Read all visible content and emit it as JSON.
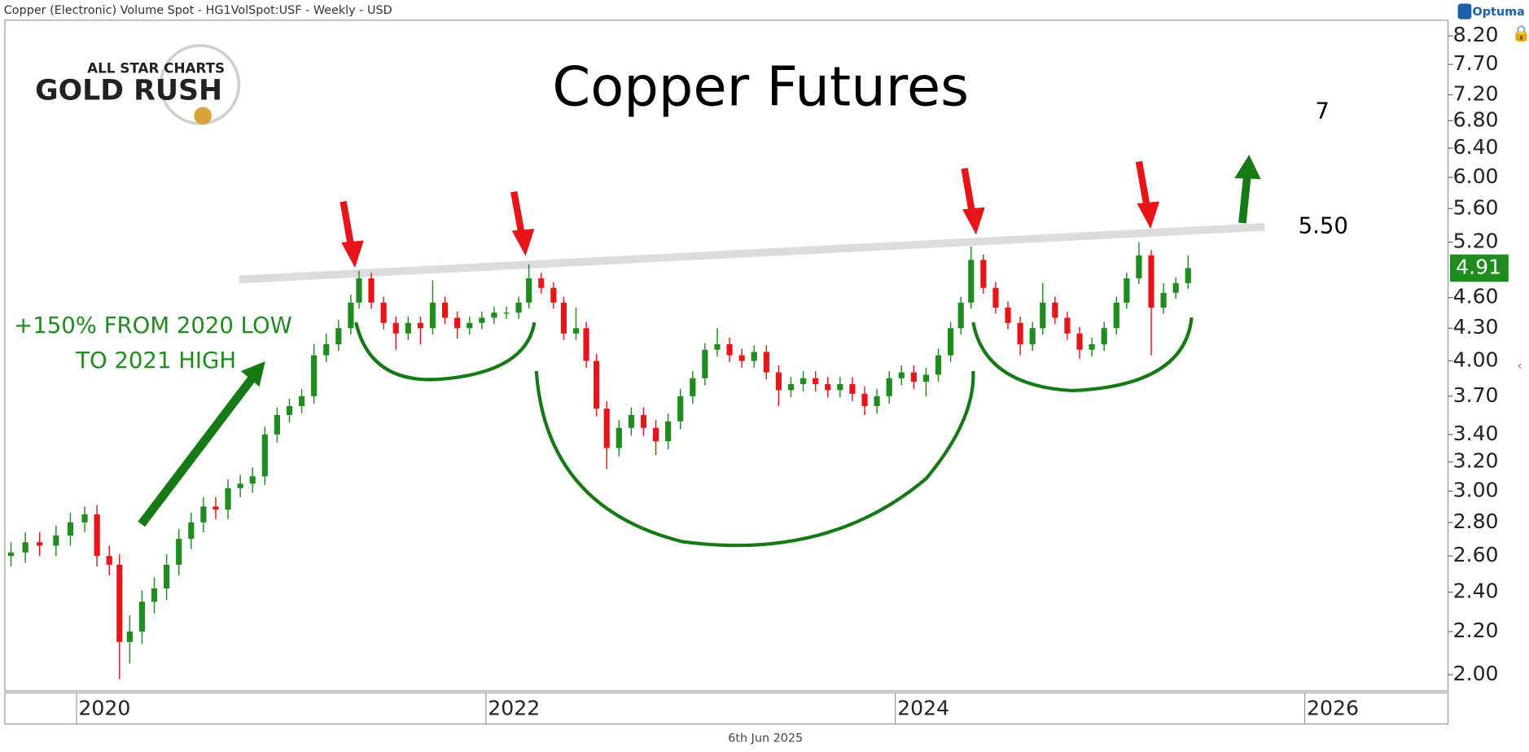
{
  "header": "Copper (Electronic) Volume Spot - HG1VolSpot:USF - Weekly - USD",
  "brand": "Optuma",
  "logo": {
    "line1": "ALL STAR CHARTS",
    "line2": "GOLD RUSH"
  },
  "footer": "6th Jun 2025",
  "chart_data": {
    "type": "candlestick",
    "title": "Copper Futures",
    "annotations": [
      "+150% FROM 2020 LOW",
      "TO 2021 HIGH",
      "7",
      "5.50"
    ],
    "up_color": "#1e8c1e",
    "down_color": "#e8141a",
    "log_scale": true,
    "x": [
      2019.68,
      2019.75,
      2019.82,
      2019.9,
      2019.97,
      2020.04,
      2020.1,
      2020.16,
      2020.21,
      2020.26,
      2020.32,
      2020.38,
      2020.44,
      2020.5,
      2020.56,
      2020.62,
      2020.68,
      2020.74,
      2020.8,
      2020.86,
      2020.92,
      2020.98,
      2021.04,
      2021.1,
      2021.16,
      2021.22,
      2021.28,
      2021.34,
      2021.38,
      2021.44,
      2021.5,
      2021.56,
      2021.62,
      2021.68,
      2021.74,
      2021.8,
      2021.86,
      2021.92,
      2021.98,
      2022.04,
      2022.1,
      2022.16,
      2022.21,
      2022.27,
      2022.33,
      2022.38,
      2022.44,
      2022.49,
      2022.54,
      2022.59,
      2022.65,
      2022.71,
      2022.77,
      2022.83,
      2022.89,
      2022.95,
      2023.01,
      2023.07,
      2023.13,
      2023.19,
      2023.25,
      2023.31,
      2023.37,
      2023.43,
      2023.49,
      2023.55,
      2023.61,
      2023.67,
      2023.73,
      2023.79,
      2023.85,
      2023.91,
      2023.97,
      2024.03,
      2024.09,
      2024.15,
      2024.21,
      2024.27,
      2024.32,
      2024.37,
      2024.43,
      2024.49,
      2024.55,
      2024.61,
      2024.67,
      2024.72,
      2024.78,
      2024.84,
      2024.9,
      2024.96,
      2025.02,
      2025.08,
      2025.13,
      2025.19,
      2025.25,
      2025.31,
      2025.37,
      2025.43
    ],
    "open": [
      2.6,
      2.62,
      2.68,
      2.66,
      2.72,
      2.8,
      2.85,
      2.6,
      2.55,
      2.15,
      2.2,
      2.35,
      2.42,
      2.55,
      2.7,
      2.8,
      2.9,
      2.88,
      3.02,
      3.05,
      3.1,
      3.4,
      3.55,
      3.62,
      3.7,
      4.05,
      4.15,
      4.3,
      4.55,
      4.8,
      4.55,
      4.35,
      4.25,
      4.35,
      4.3,
      4.55,
      4.4,
      4.3,
      4.35,
      4.4,
      4.45,
      4.45,
      4.55,
      4.8,
      4.7,
      4.55,
      4.25,
      4.3,
      4.0,
      3.6,
      3.3,
      3.45,
      3.55,
      3.45,
      3.35,
      3.5,
      3.7,
      3.85,
      4.1,
      4.15,
      4.05,
      4.0,
      4.08,
      3.9,
      3.75,
      3.8,
      3.85,
      3.8,
      3.75,
      3.8,
      3.72,
      3.62,
      3.7,
      3.85,
      3.9,
      3.82,
      3.88,
      4.05,
      4.3,
      4.55,
      5.0,
      4.7,
      4.5,
      4.35,
      4.15,
      4.3,
      4.55,
      4.4,
      4.25,
      4.1,
      4.15,
      4.3,
      4.55,
      4.8,
      5.05,
      4.5,
      4.65,
      4.75
    ],
    "high": [
      2.68,
      2.74,
      2.74,
      2.78,
      2.86,
      2.9,
      2.91,
      2.66,
      2.61,
      2.28,
      2.41,
      2.48,
      2.61,
      2.76,
      2.86,
      2.96,
      2.96,
      3.08,
      3.11,
      3.16,
      3.46,
      3.61,
      3.68,
      3.76,
      4.15,
      4.25,
      4.38,
      4.63,
      4.88,
      4.86,
      4.61,
      4.41,
      4.41,
      4.41,
      4.78,
      4.61,
      4.46,
      4.41,
      4.46,
      4.51,
      4.51,
      4.61,
      4.95,
      4.86,
      4.76,
      4.61,
      4.5,
      4.36,
      4.06,
      3.66,
      3.51,
      3.61,
      3.61,
      3.51,
      3.56,
      3.76,
      3.91,
      4.16,
      4.3,
      4.21,
      4.11,
      4.14,
      4.14,
      3.96,
      3.86,
      3.91,
      3.91,
      3.86,
      3.86,
      3.86,
      3.78,
      3.76,
      3.91,
      3.96,
      3.96,
      3.94,
      4.11,
      4.36,
      4.61,
      5.15,
      5.06,
      4.76,
      4.56,
      4.41,
      4.36,
      4.75,
      4.61,
      4.46,
      4.31,
      4.21,
      4.36,
      4.61,
      4.86,
      5.2,
      5.11,
      4.75,
      4.81,
      5.05
    ],
    "low": [
      2.54,
      2.56,
      2.6,
      2.6,
      2.66,
      2.74,
      2.54,
      2.49,
      1.98,
      2.05,
      2.14,
      2.29,
      2.36,
      2.49,
      2.64,
      2.74,
      2.82,
      2.82,
      2.96,
      2.99,
      3.04,
      3.34,
      3.49,
      3.56,
      3.64,
      3.99,
      4.09,
      4.24,
      4.49,
      4.49,
      4.29,
      4.1,
      4.19,
      4.15,
      4.24,
      4.34,
      4.2,
      4.24,
      4.29,
      4.34,
      4.39,
      4.39,
      4.49,
      4.64,
      4.49,
      4.19,
      4.19,
      3.94,
      3.54,
      3.15,
      3.24,
      3.39,
      3.39,
      3.25,
      3.29,
      3.44,
      3.64,
      3.79,
      4.04,
      3.99,
      3.94,
      3.94,
      3.84,
      3.62,
      3.69,
      3.74,
      3.74,
      3.69,
      3.69,
      3.66,
      3.55,
      3.56,
      3.64,
      3.79,
      3.76,
      3.7,
      3.82,
      3.99,
      4.24,
      4.49,
      4.64,
      4.44,
      4.29,
      4.05,
      4.09,
      4.24,
      4.34,
      4.19,
      4.02,
      4.04,
      4.09,
      4.24,
      4.49,
      4.74,
      4.05,
      4.44,
      4.59,
      4.69
    ],
    "close": [
      2.62,
      2.68,
      2.66,
      2.72,
      2.8,
      2.85,
      2.6,
      2.55,
      2.15,
      2.2,
      2.35,
      2.42,
      2.55,
      2.7,
      2.8,
      2.9,
      2.88,
      3.02,
      3.05,
      3.1,
      3.4,
      3.55,
      3.62,
      3.7,
      4.05,
      4.15,
      4.3,
      4.55,
      4.8,
      4.55,
      4.35,
      4.25,
      4.35,
      4.3,
      4.55,
      4.4,
      4.3,
      4.35,
      4.4,
      4.45,
      4.45,
      4.55,
      4.8,
      4.7,
      4.55,
      4.25,
      4.3,
      4.0,
      3.6,
      3.3,
      3.45,
      3.55,
      3.45,
      3.35,
      3.5,
      3.7,
      3.85,
      4.1,
      4.15,
      4.05,
      4.0,
      4.08,
      3.9,
      3.75,
      3.8,
      3.85,
      3.8,
      3.75,
      3.8,
      3.72,
      3.62,
      3.7,
      3.85,
      3.9,
      3.82,
      3.88,
      4.05,
      4.3,
      4.55,
      5.0,
      4.7,
      4.5,
      4.35,
      4.15,
      4.3,
      4.55,
      4.4,
      4.25,
      4.1,
      4.15,
      4.3,
      4.55,
      4.8,
      5.05,
      4.5,
      4.65,
      4.75,
      4.91
    ],
    "xlim": [
      2019.65,
      2026.7
    ],
    "xticks": [
      2020,
      2022,
      2024,
      2026
    ],
    "ylim": [
      1.93,
      8.49
    ],
    "yticks": [
      {
        "value": 8.2,
        "label": "8.20"
      },
      {
        "value": 7.7,
        "label": "7.70"
      },
      {
        "value": 7.2,
        "label": "7.20"
      },
      {
        "value": 6.8,
        "label": "6.80"
      },
      {
        "value": 6.4,
        "label": "6.40"
      },
      {
        "value": 6,
        "label": "6.00"
      },
      {
        "value": 5.6,
        "label": "5.60"
      },
      {
        "value": 5.2,
        "label": "5.20"
      },
      {
        "value": 4.6,
        "label": "4.60"
      },
      {
        "value": 4.3,
        "label": "4.30"
      },
      {
        "value": 4,
        "label": "4.00"
      },
      {
        "value": 3.7,
        "label": "3.70"
      },
      {
        "value": 3.4,
        "label": "3.40"
      },
      {
        "value": 3.2,
        "label": "3.20"
      },
      {
        "value": 3,
        "label": "3.00"
      },
      {
        "value": 2.8,
        "label": "2.80"
      },
      {
        "value": 2.6,
        "label": "2.60"
      },
      {
        "value": 2.4,
        "label": "2.40"
      },
      {
        "value": 2.2,
        "label": "2.20"
      },
      {
        "value": 2,
        "label": "2.00"
      }
    ]
  }
}
